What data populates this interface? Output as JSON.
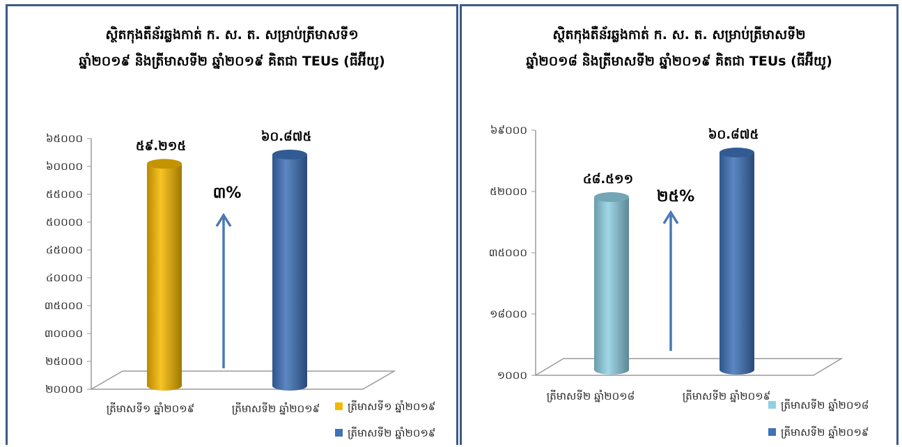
{
  "chart_data": [
    {
      "type": "bar",
      "title_lines": [
        "ស្ថិតកុងតឺន័រឆ្លងកាត់ ក. ស. ត. សម្រាប់ត្រីមាសទី១",
        "ឆ្នាំ២០១៩ និងត្រីមាសទី២ ឆ្នាំ២០១៩ គិតជា TEUs (ធីអ៊ីយូ)"
      ],
      "categories": [
        "ត្រីមាសទី១ ឆ្នាំ២០១៩",
        "ត្រីមាសទី២ ឆ្នាំ២០១៩"
      ],
      "values": [
        59215,
        60875
      ],
      "value_labels": [
        "៥៩.២១៥",
        "៦០.៨៧៥"
      ],
      "y_ticks": [
        20000,
        25000,
        30000,
        35000,
        40000,
        45000,
        50000,
        55000,
        60000,
        65000
      ],
      "y_tick_labels": [
        "២០០០០",
        "២៥០០០",
        "៣០០០០",
        "៣៥០០០",
        "៤០០០០",
        "៤៥០០០",
        "៥០០០០",
        "៥៥០០០",
        "៦០០០០",
        "៦៥០០០"
      ],
      "ylim": [
        20000,
        65000
      ],
      "legend": [
        "ត្រីមាសទី១ ឆ្នាំ២០១៩",
        "ត្រីមាសទី២ ឆ្នាំ២០១៩"
      ],
      "legend_position": "bottom-right",
      "colors": [
        "#f5b800",
        "#3f72b8"
      ],
      "change_label": "៣%",
      "grid": false
    },
    {
      "type": "bar",
      "title_lines": [
        "ស្ថិតកុងតឺន័រឆ្លងកាត់ ក. ស. ត. សម្រាប់ត្រីមាសទី២",
        "ឆ្នាំ២០១៨ និងត្រីមាសទី២ ឆ្នាំ២០១៩ គិតជា TEUs (ធីអ៊ីយូ)"
      ],
      "categories": [
        "ត្រីមាសទី២ ឆ្នាំ២០១៨",
        "ត្រីមាសទី២ ឆ្នាំ២០១៩"
      ],
      "values": [
        48511,
        60875
      ],
      "value_labels": [
        "៤៨.៥១១",
        "៦០.៨៧៥"
      ],
      "y_ticks": [
        1000,
        18000,
        35000,
        52000,
        69000
      ],
      "y_tick_labels": [
        "១០០០",
        "១៨០០០",
        "៣៥០០០",
        "៥២០០០",
        "៦៩០០០"
      ],
      "ylim": [
        1000,
        69000
      ],
      "legend": [
        "ត្រីមាសទី២ ឆ្នាំ២០១៨",
        "ត្រីមាសទី២ ឆ្នាំ២០១៩"
      ],
      "legend_position": "bottom-right",
      "colors": [
        "#8fd0e3",
        "#3f72b8"
      ],
      "change_label": "២៥%",
      "grid": false
    }
  ]
}
